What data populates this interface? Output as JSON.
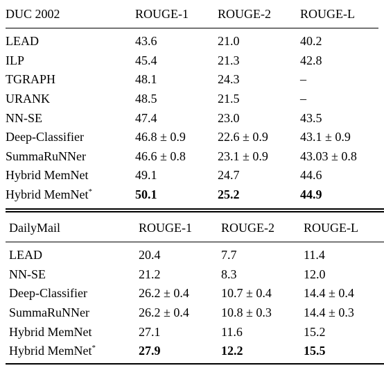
{
  "tables": [
    {
      "dataset": "DUC 2002",
      "headers": [
        "ROUGE-1",
        "ROUGE-2",
        "ROUGE-L"
      ],
      "rows": [
        {
          "model": "LEAD",
          "r1": "43.6",
          "r2": "21.0",
          "rl": "40.2"
        },
        {
          "model": "ILP",
          "r1": "45.4",
          "r2": "21.3",
          "rl": "42.8"
        },
        {
          "model": "TGRAPH",
          "r1": "48.1",
          "r2": "24.3",
          "rl": "–"
        },
        {
          "model": "URANK",
          "r1": "48.5",
          "r2": "21.5",
          "rl": "–"
        },
        {
          "model": "NN-SE",
          "r1": "47.4",
          "r2": "23.0",
          "rl": "43.5"
        },
        {
          "model": "Deep-Classifier",
          "r1": "46.8 ± 0.9",
          "r2": "22.6 ± 0.9",
          "rl": "43.1 ± 0.9"
        },
        {
          "model": "SummaRuNNer",
          "r1": "46.6 ± 0.8",
          "r2": "23.1 ± 0.9",
          "rl": "43.03 ± 0.8"
        },
        {
          "model": "Hybrid MemNet",
          "r1": "49.1",
          "r2": "24.7",
          "rl": "44.6"
        },
        {
          "model": "Hybrid MemNet",
          "mark": "*",
          "r1": "50.1",
          "r2": "25.2",
          "rl": "44.9"
        }
      ]
    },
    {
      "dataset": "DailyMail",
      "headers": [
        "ROUGE-1",
        "ROUGE-2",
        "ROUGE-L"
      ],
      "rows": [
        {
          "model": "LEAD",
          "r1": "20.4",
          "r2": "7.7",
          "rl": "11.4"
        },
        {
          "model": "NN-SE",
          "r1": "21.2",
          "r2": "8.3",
          "rl": "12.0"
        },
        {
          "model": "Deep-Classifier",
          "r1": "26.2 ± 0.4",
          "r2": "10.7 ± 0.4",
          "rl": "14.4 ± 0.4"
        },
        {
          "model": "SummaRuNNer",
          "r1": "26.2 ± 0.4",
          "r2": "10.8 ± 0.3",
          "rl": "14.4 ± 0.3"
        },
        {
          "model": "Hybrid MemNet",
          "r1": "27.1",
          "r2": "11.6",
          "rl": "15.2"
        },
        {
          "model": "Hybrid MemNet",
          "mark": "*",
          "r1": "27.9",
          "r2": "12.2",
          "rl": "15.5"
        }
      ]
    }
  ]
}
